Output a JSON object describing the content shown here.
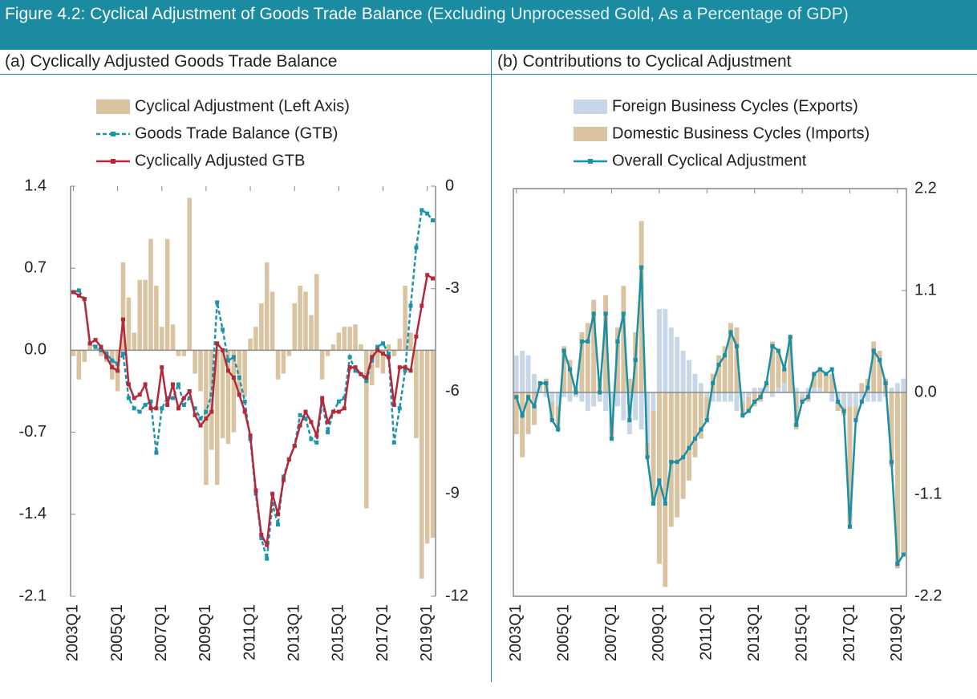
{
  "header": {
    "title": "Figure 4.2: Cyclical Adjustment of Goods Trade Balance",
    "subtitle": "(Excluding Unprocessed Gold, As a Percentage of GDP)"
  },
  "chart_data": [
    {
      "type": "combo",
      "title": "(a) Cyclically Adjusted Goods Trade Balance",
      "categories": [
        "2003Q1",
        null,
        null,
        null,
        null,
        null,
        null,
        null,
        "2005Q1",
        null,
        null,
        null,
        null,
        null,
        null,
        null,
        "2007Q1",
        null,
        null,
        null,
        null,
        null,
        null,
        null,
        "2009Q1",
        null,
        null,
        null,
        null,
        null,
        null,
        null,
        "2011Q1",
        null,
        null,
        null,
        null,
        null,
        null,
        null,
        "2013Q1",
        null,
        null,
        null,
        null,
        null,
        null,
        null,
        "2015Q1",
        null,
        null,
        null,
        null,
        null,
        null,
        null,
        "2017Q1",
        null,
        null,
        null,
        null,
        null,
        null,
        null,
        "2019Q1",
        null
      ],
      "ylim": [
        -2.1,
        1.4
      ],
      "yticks": [
        1.4,
        0.7,
        {
          "value": 0,
          "label": "0.0"
        },
        -0.7,
        -1.4,
        -2.1
      ],
      "y2lim": [
        -12,
        0
      ],
      "y2ticks": [
        0,
        -3,
        -6,
        -9,
        -12
      ],
      "series": [
        {
          "name": "Cyclical Adjustment (Left Axis)",
          "kind": "bar",
          "color": "#dac3a0",
          "values": [
            -0.05,
            -0.25,
            -0.1,
            0.05,
            0.05,
            -0.05,
            -0.1,
            -0.25,
            -0.35,
            0.75,
            0.45,
            0.15,
            0.6,
            0.6,
            0.95,
            0.55,
            0.2,
            0.95,
            0.22,
            -0.05,
            -0.05,
            1.3,
            -0.2,
            -0.35,
            -1.15,
            -0.85,
            -1.15,
            -0.75,
            -0.8,
            -0.7,
            -0.4,
            -0.4,
            0.1,
            0.2,
            0.4,
            0.75,
            0.5,
            -0.25,
            -0.2,
            -0.05,
            0.4,
            0.55,
            0.5,
            0.3,
            0.65,
            -0.25,
            -0.05,
            0.05,
            0.15,
            0.2,
            0.2,
            0.22,
            0.05,
            -1.35,
            -0.3,
            -0.15,
            -0.2,
            0.05,
            -0.05,
            0.1,
            0.55,
            0.15,
            -0.75,
            -1.95,
            -1.65,
            -1.6
          ]
        },
        {
          "name": "Goods Trade Balance (GTB)",
          "kind": "line",
          "axis": "y2",
          "dash": true,
          "color": "#1d95a9",
          "values": [
            -3.1,
            -3.05,
            -3.3,
            -4.6,
            -4.7,
            -4.8,
            -4.9,
            -5.1,
            -5.2,
            -4.9,
            -6.2,
            -6.5,
            -6.6,
            -6.4,
            -6.3,
            -7.8,
            -6.5,
            -6.2,
            -6.2,
            -5.8,
            -6.4,
            -6.2,
            -6.5,
            -6.8,
            -6.6,
            -6.1,
            -3.4,
            -4.2,
            -5.1,
            -5.0,
            -5.6,
            -6.3,
            -7.4,
            -9.0,
            -10.3,
            -10.9,
            -9.3,
            -9.9,
            -8.5,
            -8.0,
            -7.6,
            -6.7,
            -6.8,
            -7.4,
            -7.5,
            -6.3,
            -7.2,
            -6.6,
            -6.3,
            -6.2,
            -5.0,
            -5.4,
            -5.5,
            -5.7,
            -5.1,
            -4.7,
            -4.6,
            -4.9,
            -7.5,
            -6.5,
            -5.4,
            -3.5,
            -1.8,
            -0.7,
            -0.8,
            -1.0
          ]
        },
        {
          "name": "Cyclically Adjusted GTB",
          "kind": "line",
          "axis": "y2",
          "color": "#b3283a",
          "values": [
            -3.1,
            -3.2,
            -3.3,
            -4.6,
            -4.5,
            -4.7,
            -5.0,
            -5.3,
            -5.4,
            -3.9,
            -5.8,
            -6.2,
            -6.1,
            -5.8,
            -6.5,
            -6.5,
            -5.3,
            -6.4,
            -5.8,
            -6.5,
            -6.2,
            -6.0,
            -6.7,
            -7.0,
            -6.8,
            -6.6,
            -4.6,
            -4.8,
            -5.4,
            -5.6,
            -6.1,
            -6.6,
            -7.3,
            -8.9,
            -10.2,
            -10.5,
            -9.0,
            -9.6,
            -8.6,
            -8.0,
            -7.6,
            -7.0,
            -6.6,
            -6.9,
            -7.3,
            -6.2,
            -6.9,
            -6.6,
            -6.6,
            -6.5,
            -5.3,
            -5.3,
            -5.5,
            -5.6,
            -5.0,
            -4.8,
            -4.9,
            -5.0,
            -6.4,
            -5.3,
            -5.3,
            -5.4,
            -4.4,
            -3.5,
            -2.6,
            -2.7
          ]
        }
      ]
    },
    {
      "type": "combo",
      "title": "(b) Contributions to Cyclical Adjustment",
      "stacked": true,
      "y_axis_position": "right",
      "frame": true,
      "categories": [
        "2003Q1",
        null,
        null,
        null,
        null,
        null,
        null,
        null,
        "2005Q1",
        null,
        null,
        null,
        null,
        null,
        null,
        null,
        "2007Q1",
        null,
        null,
        null,
        null,
        null,
        null,
        null,
        "2009Q1",
        null,
        null,
        null,
        null,
        null,
        null,
        null,
        "2011Q1",
        null,
        null,
        null,
        null,
        null,
        null,
        null,
        "2013Q1",
        null,
        null,
        null,
        null,
        null,
        null,
        null,
        "2015Q1",
        null,
        null,
        null,
        null,
        null,
        null,
        null,
        "2017Q1",
        null,
        null,
        null,
        null,
        null,
        null,
        null,
        "2019Q1",
        null
      ],
      "ylim": [
        -2.2,
        2.2
      ],
      "yticks": [
        2.2,
        1.1,
        {
          "value": 0,
          "label": "0.0"
        },
        -1.1,
        -2.2
      ],
      "series": [
        {
          "name": "Foreign Business Cycles (Exports)",
          "kind": "bar",
          "color": "#c7d7e7",
          "values": [
            0.4,
            0.45,
            0.4,
            0.2,
            0.05,
            -0.05,
            -0.1,
            -0.15,
            -0.05,
            -0.1,
            -0.05,
            -0.1,
            -0.2,
            -0.15,
            -0.1,
            -0.2,
            -0.25,
            -0.15,
            -0.3,
            -0.45,
            -0.3,
            -0.4,
            -0.55,
            -0.2,
            0.9,
            0.9,
            0.7,
            0.6,
            0.45,
            0.35,
            0.2,
            0.1,
            -0.05,
            -0.1,
            -0.1,
            -0.1,
            -0.1,
            -0.2,
            -0.1,
            -0.05,
            0.05,
            0.05,
            0.05,
            -0.05,
            0.05,
            0.1,
            0.0,
            0.05,
            -0.05,
            0.05,
            0.05,
            0.05,
            0.0,
            -0.1,
            -0.1,
            -0.15,
            -0.15,
            -0.15,
            -0.1,
            -0.1,
            -0.1,
            -0.1,
            -0.05,
            0.05,
            0.1,
            0.15
          ]
        },
        {
          "name": "Domestic Business Cycles (Imports)",
          "kind": "bar",
          "color": "#dac3a0",
          "values": [
            -0.45,
            -0.7,
            -0.45,
            -0.35,
            0.05,
            0.15,
            -0.2,
            -0.25,
            0.5,
            0.35,
            0.05,
            0.65,
            0.75,
            1.0,
            0.1,
            1.05,
            -0.25,
            0.7,
            1.15,
            0.15,
            0.65,
            1.85,
            -0.15,
            -1.0,
            -1.85,
            -2.1,
            -1.45,
            -1.35,
            -1.15,
            -0.95,
            -0.7,
            -0.5,
            -0.25,
            0.2,
            0.4,
            0.5,
            0.75,
            0.7,
            -0.15,
            -0.15,
            -0.15,
            -0.1,
            0.05,
            0.55,
            0.4,
            0.15,
            0.6,
            -0.4,
            -0.05,
            -0.1,
            0.15,
            0.2,
            0.2,
            0.2,
            -0.1,
            -0.1,
            -1.3,
            -0.15,
            0.1,
            0.15,
            0.55,
            0.45,
            0.15,
            -0.8,
            -1.9,
            -1.75
          ]
        },
        {
          "name": "Overall Cyclical Adjustment",
          "kind": "line",
          "color": "#1b8fa3",
          "values": [
            -0.05,
            -0.25,
            -0.05,
            -0.15,
            0.1,
            0.1,
            -0.3,
            -0.4,
            0.45,
            0.25,
            0.0,
            0.55,
            0.55,
            0.85,
            0.0,
            0.85,
            -0.5,
            0.55,
            0.85,
            -0.3,
            0.35,
            1.35,
            -0.7,
            -1.2,
            -0.95,
            -1.2,
            -0.75,
            -0.75,
            -0.7,
            -0.6,
            -0.5,
            -0.4,
            -0.3,
            0.1,
            0.3,
            0.4,
            0.65,
            0.5,
            -0.25,
            -0.2,
            -0.1,
            -0.05,
            0.1,
            0.5,
            0.45,
            0.25,
            0.6,
            -0.35,
            -0.1,
            -0.05,
            0.2,
            0.25,
            0.2,
            0.25,
            -0.1,
            -0.2,
            -1.45,
            -0.3,
            -0.1,
            0.05,
            0.45,
            0.35,
            0.1,
            -0.75,
            -1.85,
            -1.75
          ]
        }
      ]
    }
  ]
}
